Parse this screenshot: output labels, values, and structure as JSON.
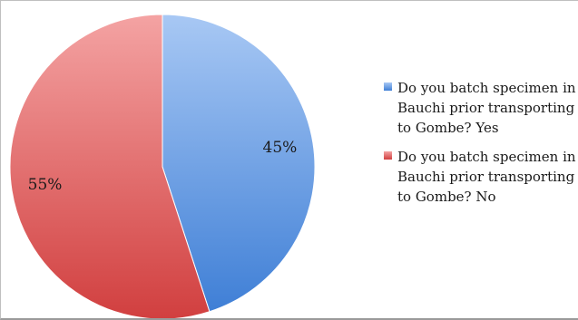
{
  "chart_data": {
    "type": "pie",
    "slices": [
      {
        "label": "Do you batch specimen in Bauchi prior transporting to Gombe? Yes",
        "value": 45,
        "data_label": "45%",
        "color_light": "#a8c8f4",
        "color_dark": "#3f7fd6"
      },
      {
        "label": "Do you batch specimen in Bauchi prior transporting to Gombe? No",
        "value": 55,
        "data_label": "55%",
        "color_light": "#f4a3a3",
        "color_dark": "#d13f3f"
      }
    ],
    "legend_position": "right"
  }
}
